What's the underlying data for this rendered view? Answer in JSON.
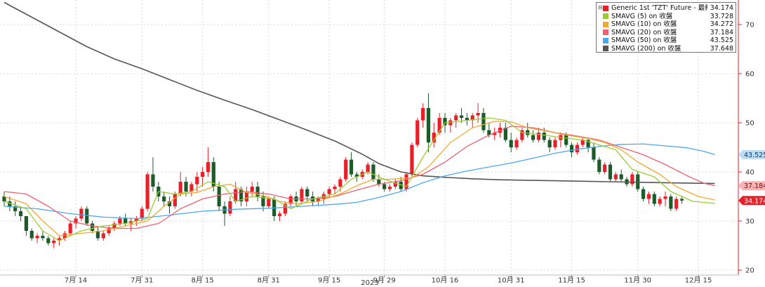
{
  "chart_data": {
    "type": "candlestick",
    "ylim": [
      19,
      75
    ],
    "y_ticks": [
      20,
      30,
      40,
      50,
      60,
      70
    ],
    "x_ticks": [
      {
        "label": "7月 14",
        "index": 13
      },
      {
        "label": "7月 31",
        "index": 25
      },
      {
        "label": "8月 15",
        "index": 36
      },
      {
        "label": "8月 31",
        "index": 48
      },
      {
        "label": "9月 15",
        "index": 59
      },
      {
        "label": "9月 29",
        "index": 69
      },
      {
        "label": "10月 16",
        "index": 80
      },
      {
        "label": "10月 31",
        "index": 92
      },
      {
        "label": "11月 15",
        "index": 103
      },
      {
        "label": "11月 30",
        "index": 115
      },
      {
        "label": "12月 15",
        "index": 126
      }
    ],
    "year_label": "2023",
    "legend": [
      {
        "label": "Generic 1st 'TZT' Future - 最新價",
        "value": "34.174",
        "color": "#e8202a"
      },
      {
        "label": "SMAVG (5)  on 收盤",
        "value": "33.728",
        "color": "#9acd32"
      },
      {
        "label": "SMAVG (10)  on 收盤",
        "value": "34.272",
        "color": "#f0a830"
      },
      {
        "label": "SMAVG (20)  on 收盤",
        "value": "37.184",
        "color": "#f06070"
      },
      {
        "label": "SMAVG (50)  on 收盤",
        "value": "43.525",
        "color": "#4aa8f0"
      },
      {
        "label": "SMAVG (200)  on 收盤",
        "value": "37.648",
        "color": "#555555"
      }
    ],
    "price_tags": [
      {
        "value": 43.525,
        "text": "43.525",
        "bg": "#bcdcf6",
        "fg": "#0b3d6b"
      },
      {
        "value": 37.184,
        "text": "37.184",
        "bg": "#f9b3b3",
        "fg": "#6a0a0a"
      },
      {
        "value": 34.174,
        "text": "34.174",
        "bg": "#e8202a",
        "fg": "#ffffff"
      }
    ],
    "up_color": "#e8202a",
    "down_color": "#1e5b2a",
    "ohlc": [
      [
        35,
        36,
        33,
        34
      ],
      [
        34,
        35,
        32,
        33
      ],
      [
        33,
        34,
        31,
        32
      ],
      [
        32,
        33,
        30,
        31
      ],
      [
        31,
        31,
        27,
        28
      ],
      [
        28,
        28.5,
        26,
        26.5
      ],
      [
        26.5,
        27.5,
        25.5,
        27
      ],
      [
        27,
        28,
        26,
        26.5
      ],
      [
        26.5,
        27,
        25,
        25.5
      ],
      [
        25.5,
        26.5,
        24.5,
        26
      ],
      [
        26,
        27,
        25,
        26.5
      ],
      [
        26.5,
        28,
        26,
        27.5
      ],
      [
        27.5,
        30,
        27,
        29.5
      ],
      [
        29.5,
        31,
        28.5,
        30.5
      ],
      [
        30.5,
        33,
        30,
        32.5
      ],
      [
        32.5,
        33,
        29,
        29.5
      ],
      [
        29.5,
        30,
        27.5,
        28
      ],
      [
        28,
        29,
        26,
        26.5
      ],
      [
        26.5,
        28,
        26,
        27.5
      ],
      [
        27.5,
        29,
        27,
        28.5
      ],
      [
        28.5,
        30,
        28,
        29.5
      ],
      [
        29.5,
        31,
        29,
        30.5
      ],
      [
        30.5,
        31.5,
        29,
        29.5
      ],
      [
        29.5,
        30.5,
        28,
        30
      ],
      [
        30,
        31,
        29,
        30.5
      ],
      [
        30.5,
        33,
        30,
        32.5
      ],
      [
        32.5,
        40,
        32,
        39.5
      ],
      [
        39.5,
        43,
        36,
        37
      ],
      [
        37,
        38,
        34,
        35
      ],
      [
        35,
        36,
        33,
        34
      ],
      [
        34,
        35,
        31.5,
        33
      ],
      [
        33,
        36,
        32.5,
        35.5
      ],
      [
        35.5,
        40,
        35,
        38
      ],
      [
        38,
        39,
        35,
        36
      ],
      [
        36,
        38,
        35,
        37.5
      ],
      [
        37.5,
        40,
        36,
        39
      ],
      [
        39,
        41,
        37,
        40
      ],
      [
        40,
        45,
        39,
        42
      ],
      [
        42,
        43,
        36,
        37
      ],
      [
        37,
        38,
        32,
        33
      ],
      [
        33,
        34,
        29,
        31.5
      ],
      [
        31.5,
        35,
        31,
        34
      ],
      [
        34,
        38,
        33.5,
        36.5
      ],
      [
        36.5,
        37,
        33,
        34
      ],
      [
        34,
        37,
        33,
        36
      ],
      [
        36,
        38,
        35,
        37
      ],
      [
        37,
        38,
        34,
        35
      ],
      [
        35,
        36,
        32,
        33
      ],
      [
        33,
        35,
        32.5,
        34.5
      ],
      [
        34.5,
        35,
        30,
        31
      ],
      [
        31,
        32,
        30,
        31.5
      ],
      [
        31.5,
        34,
        31,
        33.5
      ],
      [
        33.5,
        35.5,
        33,
        35
      ],
      [
        35,
        36,
        33,
        34
      ],
      [
        34,
        37,
        33.5,
        36.5
      ],
      [
        36.5,
        37,
        34,
        35
      ],
      [
        35,
        36,
        33,
        34
      ],
      [
        34,
        35,
        33,
        34.5
      ],
      [
        34.5,
        36,
        33.5,
        35.5
      ],
      [
        35.5,
        37,
        35,
        36.5
      ],
      [
        36.5,
        37.5,
        35.5,
        37
      ],
      [
        37,
        39,
        36,
        38.5
      ],
      [
        38.5,
        43,
        38,
        42.5
      ],
      [
        42.5,
        44,
        39,
        39.5
      ],
      [
        39.5,
        40,
        38,
        39
      ],
      [
        39,
        40.5,
        38.5,
        40
      ],
      [
        40,
        42,
        39.5,
        41.5
      ],
      [
        41.5,
        42,
        38,
        38.5
      ],
      [
        38.5,
        39.5,
        37,
        37.5
      ],
      [
        37.5,
        38,
        36,
        36.5
      ],
      [
        36.5,
        37.5,
        36,
        37
      ],
      [
        37,
        38.5,
        36.5,
        38
      ],
      [
        38,
        39,
        36,
        36.5
      ],
      [
        36.5,
        40,
        36,
        39.5
      ],
      [
        39.5,
        46,
        39,
        45.5
      ],
      [
        45.5,
        51,
        45,
        50.5
      ],
      [
        50.5,
        54,
        49,
        53
      ],
      [
        53,
        56,
        44,
        46
      ],
      [
        46,
        50,
        45,
        48
      ],
      [
        48,
        52,
        47.5,
        51
      ],
      [
        51,
        52,
        48,
        49.5
      ],
      [
        49.5,
        51,
        48,
        50.5
      ],
      [
        50.5,
        52,
        49,
        51.5
      ],
      [
        51.5,
        53,
        50,
        51
      ],
      [
        51,
        52,
        49.5,
        50.5
      ],
      [
        50.5,
        52,
        49,
        51.5
      ],
      [
        51.5,
        54,
        50,
        52
      ],
      [
        52,
        53,
        48,
        48.5
      ],
      [
        48.5,
        50,
        47,
        47.5
      ],
      [
        47.5,
        49,
        46.5,
        48
      ],
      [
        48,
        50,
        47,
        49
      ],
      [
        49,
        50,
        46,
        46.5
      ],
      [
        46.5,
        48,
        44,
        45
      ],
      [
        45,
        47,
        44.5,
        46.5
      ],
      [
        46.5,
        49,
        46,
        48.5
      ],
      [
        48.5,
        50,
        47,
        47.5
      ],
      [
        47.5,
        48.5,
        46,
        46.5
      ],
      [
        46.5,
        49,
        46,
        48
      ],
      [
        48,
        49,
        46,
        46.5
      ],
      [
        46.5,
        47,
        44,
        45
      ],
      [
        45,
        47,
        44.5,
        46.5
      ],
      [
        46.5,
        48,
        45,
        47.5
      ],
      [
        47.5,
        48,
        45,
        45.5
      ],
      [
        45.5,
        46,
        43,
        44
      ],
      [
        44,
        46,
        43.5,
        45.5
      ],
      [
        45.5,
        47,
        45,
        46.5
      ],
      [
        46.5,
        47,
        44,
        45
      ],
      [
        45,
        46,
        42,
        42.5
      ],
      [
        42.5,
        43,
        39.5,
        40
      ],
      [
        40,
        42,
        39.5,
        41.5
      ],
      [
        41.5,
        42,
        38,
        38.5
      ],
      [
        38.5,
        40,
        38,
        39.5
      ],
      [
        39.5,
        40.5,
        38,
        38.5
      ],
      [
        38.5,
        39,
        37,
        37.5
      ],
      [
        37.5,
        40,
        37,
        39.5
      ],
      [
        39.5,
        40,
        36,
        36.5
      ],
      [
        36.5,
        37,
        34,
        34.5
      ],
      [
        34.5,
        36,
        33.5,
        35.5
      ],
      [
        35.5,
        36,
        33,
        33.5
      ],
      [
        33.5,
        35,
        33,
        34.5
      ],
      [
        34.5,
        36,
        33,
        35
      ],
      [
        35,
        35.5,
        32,
        32.5
      ],
      [
        32.5,
        35,
        32,
        34.5
      ],
      [
        34.5,
        35,
        33.5,
        34.17
      ]
    ],
    "sma5": [
      [
        0,
        34
      ],
      [
        4,
        32.5
      ],
      [
        7,
        28
      ],
      [
        10,
        26
      ],
      [
        14,
        28
      ],
      [
        18,
        29
      ],
      [
        22,
        29.5
      ],
      [
        26,
        30.5
      ],
      [
        28,
        36
      ],
      [
        31,
        35.5
      ],
      [
        34,
        36
      ],
      [
        37,
        38
      ],
      [
        40,
        37
      ],
      [
        42,
        34
      ],
      [
        45,
        35
      ],
      [
        49,
        34.5
      ],
      [
        52,
        32.5
      ],
      [
        56,
        34.5
      ],
      [
        60,
        35.5
      ],
      [
        63,
        38.5
      ],
      [
        66,
        40
      ],
      [
        69,
        38.5
      ],
      [
        73,
        37
      ],
      [
        76,
        43
      ],
      [
        80,
        50
      ],
      [
        84,
        50.5
      ],
      [
        88,
        51
      ],
      [
        91,
        50.5
      ],
      [
        94,
        48
      ],
      [
        98,
        47.5
      ],
      [
        101,
        47
      ],
      [
        105,
        46.5
      ],
      [
        108,
        45.5
      ],
      [
        111,
        44.5
      ],
      [
        114,
        40.5
      ],
      [
        118,
        39
      ],
      [
        121,
        36
      ],
      [
        125,
        34
      ],
      [
        129,
        33.6
      ]
    ],
    "sma10": [
      [
        0,
        35
      ],
      [
        4,
        33.5
      ],
      [
        7,
        30
      ],
      [
        10,
        27
      ],
      [
        14,
        27.5
      ],
      [
        18,
        28
      ],
      [
        22,
        29
      ],
      [
        26,
        30
      ],
      [
        29,
        33
      ],
      [
        32,
        35.5
      ],
      [
        35,
        35.8
      ],
      [
        38,
        37
      ],
      [
        41,
        37.5
      ],
      [
        44,
        35.8
      ],
      [
        47,
        35.2
      ],
      [
        50,
        34
      ],
      [
        53,
        33.5
      ],
      [
        57,
        34
      ],
      [
        61,
        35.5
      ],
      [
        64,
        37.2
      ],
      [
        67,
        38.5
      ],
      [
        70,
        38.5
      ],
      [
        74,
        38.8
      ],
      [
        77,
        41
      ],
      [
        81,
        46
      ],
      [
        85,
        49
      ],
      [
        89,
        50.3
      ],
      [
        92,
        50.2
      ],
      [
        95,
        49
      ],
      [
        99,
        48.2
      ],
      [
        102,
        47.5
      ],
      [
        106,
        46.8
      ],
      [
        109,
        46
      ],
      [
        112,
        44.5
      ],
      [
        115,
        42
      ],
      [
        119,
        39.5
      ],
      [
        122,
        37
      ],
      [
        126,
        35
      ],
      [
        129,
        34.3
      ]
    ],
    "sma20": [
      [
        0,
        36
      ],
      [
        4,
        35.5
      ],
      [
        8,
        33
      ],
      [
        12,
        30
      ],
      [
        16,
        29
      ],
      [
        20,
        28.5
      ],
      [
        24,
        28.5
      ],
      [
        28,
        29.5
      ],
      [
        32,
        32.5
      ],
      [
        36,
        34.5
      ],
      [
        40,
        35.5
      ],
      [
        44,
        36
      ],
      [
        48,
        35.5
      ],
      [
        52,
        34.5
      ],
      [
        56,
        34.5
      ],
      [
        60,
        35
      ],
      [
        64,
        36.3
      ],
      [
        68,
        37.5
      ],
      [
        72,
        38.2
      ],
      [
        76,
        39.5
      ],
      [
        80,
        42
      ],
      [
        84,
        45.2
      ],
      [
        88,
        47.5
      ],
      [
        92,
        49.3
      ],
      [
        96,
        49
      ],
      [
        100,
        48
      ],
      [
        104,
        47.3
      ],
      [
        108,
        46.5
      ],
      [
        112,
        45
      ],
      [
        116,
        43.5
      ],
      [
        120,
        41.5
      ],
      [
        124,
        39.2
      ],
      [
        127,
        37.7
      ],
      [
        129,
        37.18
      ]
    ],
    "sma50": [
      [
        0,
        33
      ],
      [
        6,
        32.5
      ],
      [
        12,
        31.5
      ],
      [
        18,
        30.8
      ],
      [
        24,
        30.5
      ],
      [
        30,
        31.2
      ],
      [
        36,
        32
      ],
      [
        42,
        32.4
      ],
      [
        48,
        32.6
      ],
      [
        54,
        33
      ],
      [
        60,
        33.4
      ],
      [
        64,
        33.8
      ],
      [
        68,
        34.8
      ],
      [
        72,
        36
      ],
      [
        76,
        37.8
      ],
      [
        80,
        39.2
      ],
      [
        84,
        40.2
      ],
      [
        88,
        41
      ],
      [
        92,
        41.8
      ],
      [
        96,
        42.8
      ],
      [
        100,
        43.8
      ],
      [
        104,
        44.6
      ],
      [
        108,
        45.2
      ],
      [
        112,
        45.6
      ],
      [
        116,
        45.7
      ],
      [
        120,
        45.3
      ],
      [
        124,
        44.9
      ],
      [
        127,
        44.2
      ],
      [
        129,
        43.52
      ]
    ],
    "sma200": [
      [
        0,
        74.5
      ],
      [
        5,
        71.5
      ],
      [
        10,
        68.5
      ],
      [
        15,
        65.5
      ],
      [
        20,
        63
      ],
      [
        25,
        61
      ],
      [
        30,
        58.8
      ],
      [
        35,
        56.6
      ],
      [
        40,
        54.6
      ],
      [
        45,
        52.7
      ],
      [
        50,
        50.6
      ],
      [
        55,
        48.5
      ],
      [
        60,
        46.3
      ],
      [
        65,
        43.6
      ],
      [
        68,
        41.7
      ],
      [
        72,
        40
      ],
      [
        76,
        39.2
      ],
      [
        80,
        38.9
      ],
      [
        85,
        38.6
      ],
      [
        90,
        38.4
      ],
      [
        95,
        38.3
      ],
      [
        100,
        38.2
      ],
      [
        105,
        38.1
      ],
      [
        110,
        38
      ],
      [
        115,
        37.9
      ],
      [
        120,
        37.8
      ],
      [
        125,
        37.7
      ],
      [
        129,
        37.65
      ]
    ]
  }
}
